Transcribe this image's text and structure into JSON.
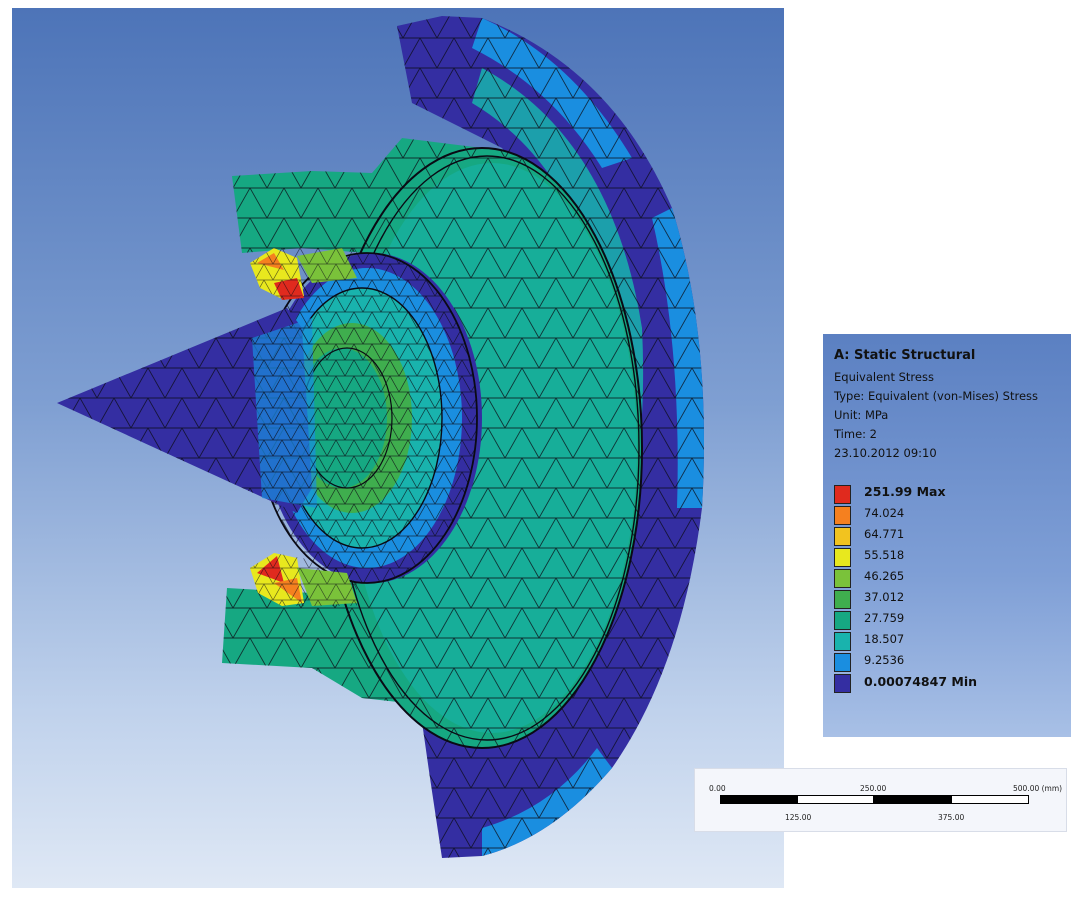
{
  "legend": {
    "title": "A: Static Structural",
    "lines": [
      "Equivalent Stress",
      "Type: Equivalent (von-Mises) Stress",
      "Unit: MPa",
      "Time: 2",
      "23.10.2012 09:10"
    ],
    "levels": [
      {
        "label": "251.99 Max",
        "color": "#e02a1e"
      },
      {
        "label": "74.024",
        "color": "#f5801f"
      },
      {
        "label": "64.771",
        "color": "#f2c31f"
      },
      {
        "label": "55.518",
        "color": "#e8e81e"
      },
      {
        "label": "46.265",
        "color": "#7ac23a"
      },
      {
        "label": "37.012",
        "color": "#3fae4e"
      },
      {
        "label": "27.759",
        "color": "#16a882"
      },
      {
        "label": "18.507",
        "color": "#19b3ad"
      },
      {
        "label": "9.2536",
        "color": "#1a8ee0"
      },
      {
        "label": "0.00074847 Min",
        "color": "#342ea2"
      }
    ]
  },
  "scale_bar": {
    "top_labels": [
      "0.00",
      "250.00",
      "500.00 (mm)"
    ],
    "bottom_labels": [
      "125.00",
      "375.00"
    ]
  },
  "colors": {
    "mesh_line": "#0a0a14",
    "min_blue": "#342ea2",
    "light_blue": "#1a8ee0",
    "teal": "#19b3ad",
    "green": "#3fae4e",
    "red": "#e02a1e"
  }
}
